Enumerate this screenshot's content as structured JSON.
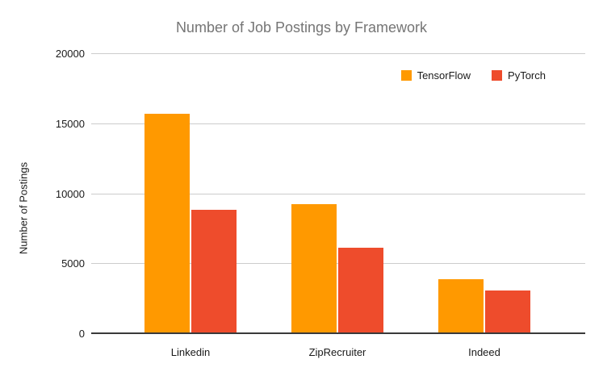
{
  "chart_data": {
    "type": "bar",
    "title": "Number of Job Postings by Framework",
    "categories": [
      "Linkedin",
      "ZipRecruiter",
      "Indeed"
    ],
    "series": [
      {
        "name": "TensorFlow",
        "color": "#FF9900",
        "values": [
          15700,
          9200,
          3850
        ]
      },
      {
        "name": "PyTorch",
        "color": "#EE4C2C",
        "values": [
          8800,
          6100,
          3050
        ]
      }
    ],
    "xlabel": "",
    "ylabel": "Number of Postings",
    "ylim": [
      0,
      20000
    ],
    "yticks": [
      0,
      5000,
      10000,
      15000,
      20000
    ],
    "grid": true,
    "legend_position": "top-right",
    "colors": {
      "gridline": "#cccccc",
      "axis_line": "#3a3a3a",
      "title_text": "#757575",
      "tick_text": "#1a1a1a",
      "background": "#ffffff"
    }
  }
}
